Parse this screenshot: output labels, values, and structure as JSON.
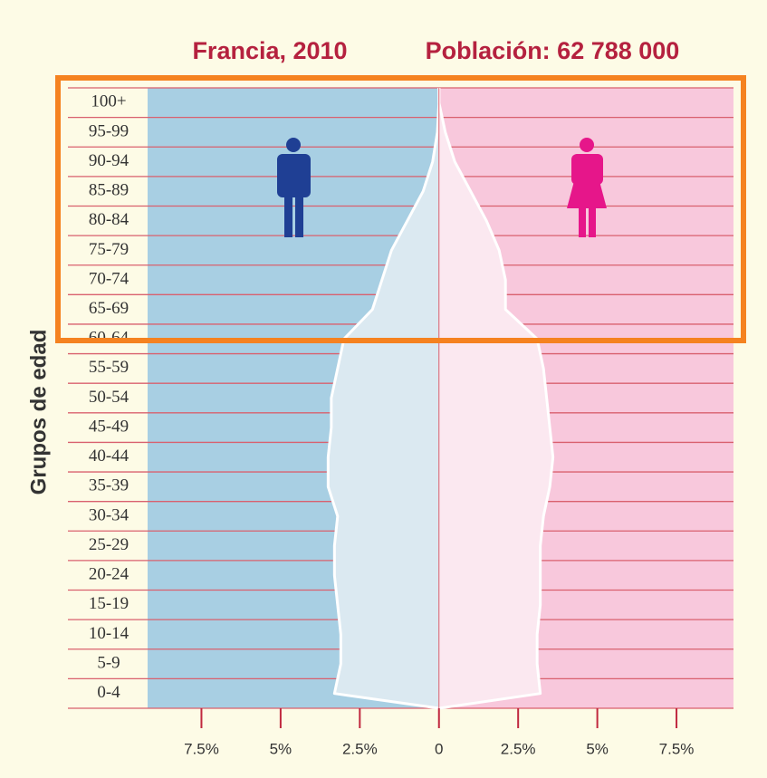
{
  "chart_data": {
    "type": "pyramid",
    "title": "Francia, 2010",
    "subtitle": "Población: 62 788 000",
    "y_label": "Grupos de edad",
    "categories": [
      "0-4",
      "5-9",
      "10-14",
      "15-19",
      "20-24",
      "25-29",
      "30-34",
      "35-39",
      "40-44",
      "45-49",
      "50-54",
      "55-59",
      "60-64",
      "65-69",
      "70-74",
      "75-79",
      "80-84",
      "85-89",
      "90-94",
      "95-99",
      "100+"
    ],
    "series": [
      {
        "name": "Hombres",
        "color": "#a8cfe3",
        "values": [
          3.3,
          3.1,
          3.1,
          3.2,
          3.3,
          3.3,
          3.2,
          3.5,
          3.5,
          3.4,
          3.4,
          3.2,
          3.0,
          2.1,
          1.8,
          1.5,
          1.0,
          0.5,
          0.2,
          0.05,
          0
        ]
      },
      {
        "name": "Mujeres",
        "color": "#f8c8dc",
        "values": [
          3.2,
          3.1,
          3.1,
          3.2,
          3.2,
          3.2,
          3.3,
          3.5,
          3.6,
          3.5,
          3.4,
          3.3,
          3.1,
          2.1,
          2.1,
          1.9,
          1.5,
          1.0,
          0.5,
          0.2,
          0
        ]
      }
    ],
    "xlim": [
      -9.2,
      9.3
    ],
    "xticks": [
      {
        "value": -7.5,
        "label": "7.5%"
      },
      {
        "value": -5,
        "label": "5%"
      },
      {
        "value": -2.5,
        "label": "2.5%"
      },
      0,
      {
        "value": 2.5,
        "label": "2.5%"
      },
      {
        "value": 5,
        "label": "5%"
      },
      {
        "value": 7.5,
        "label": "7.5%"
      }
    ],
    "grid": true
  }
}
